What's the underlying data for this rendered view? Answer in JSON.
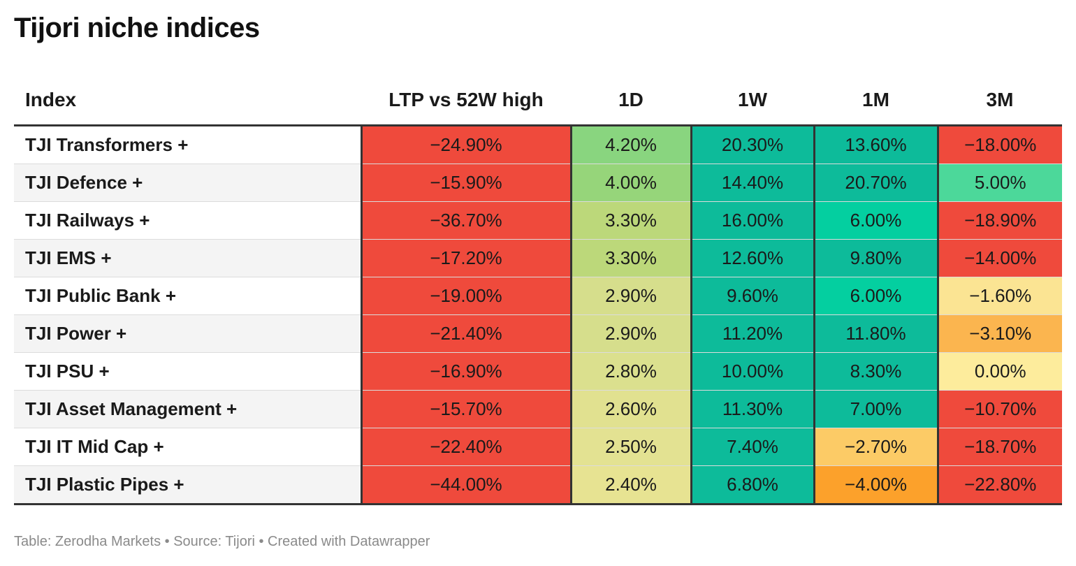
{
  "title": "Tijori niche indices",
  "footer": "Table: Zerodha Markets • Source: Tijori • Created with Datawrapper",
  "chart_data": {
    "type": "table",
    "title": "Tijori niche indices",
    "columns": [
      "Index",
      "LTP vs 52W high",
      "1D",
      "1W",
      "1M",
      "3M"
    ],
    "rows": [
      {
        "name": "TJI Transformers +",
        "values": [
          "−24.90%",
          "4.20%",
          "20.30%",
          "13.60%",
          "−18.00%"
        ],
        "colors": [
          "#ef4a3c",
          "#89d57f",
          "#0dbb9a",
          "#0dbb9a",
          "#ef4a3c"
        ]
      },
      {
        "name": "TJI Defence +",
        "values": [
          "−15.90%",
          "4.00%",
          "14.40%",
          "20.70%",
          "5.00%"
        ],
        "colors": [
          "#ef4a3c",
          "#96d57a",
          "#0dbb9a",
          "#0dbb9a",
          "#4cd89a"
        ]
      },
      {
        "name": "TJI Railways +",
        "values": [
          "−36.70%",
          "3.30%",
          "16.00%",
          "6.00%",
          "−18.90%"
        ],
        "colors": [
          "#ef4a3c",
          "#bcd87a",
          "#0dbb9a",
          "#04cfa0",
          "#ef4a3c"
        ]
      },
      {
        "name": "TJI EMS +",
        "values": [
          "−17.20%",
          "3.30%",
          "12.60%",
          "9.80%",
          "−14.00%"
        ],
        "colors": [
          "#ef4a3c",
          "#bcd87a",
          "#0dbb9a",
          "#0dbb9a",
          "#ef4a3c"
        ]
      },
      {
        "name": "TJI Public Bank +",
        "values": [
          "−19.00%",
          "2.90%",
          "9.60%",
          "6.00%",
          "−1.60%"
        ],
        "colors": [
          "#ef4a3c",
          "#d6de8c",
          "#0dbb9a",
          "#04cfa0",
          "#fbe493"
        ]
      },
      {
        "name": "TJI Power +",
        "values": [
          "−21.40%",
          "2.90%",
          "11.20%",
          "11.80%",
          "−3.10%"
        ],
        "colors": [
          "#ef4a3c",
          "#d6de8c",
          "#0dbb9a",
          "#0dbb9a",
          "#fbb54f"
        ]
      },
      {
        "name": "TJI PSU +",
        "values": [
          "−16.90%",
          "2.80%",
          "10.00%",
          "8.30%",
          "0.00%"
        ],
        "colors": [
          "#ef4a3c",
          "#dbe08e",
          "#0dbb9a",
          "#0dbb9a",
          "#fdec9c"
        ]
      },
      {
        "name": "TJI Asset Management +",
        "values": [
          "−15.70%",
          "2.60%",
          "11.30%",
          "7.00%",
          "−10.70%"
        ],
        "colors": [
          "#ef4a3c",
          "#e1e190",
          "#0dbb9a",
          "#0dbb9a",
          "#ef4a3c"
        ]
      },
      {
        "name": "TJI IT Mid Cap +",
        "values": [
          "−22.40%",
          "2.50%",
          "7.40%",
          "−2.70%",
          "−18.70%"
        ],
        "colors": [
          "#ef4a3c",
          "#e3e292",
          "#0dbb9a",
          "#fccb66",
          "#ef4a3c"
        ]
      },
      {
        "name": "TJI Plastic Pipes +",
        "values": [
          "−44.00%",
          "2.40%",
          "6.80%",
          "−4.00%",
          "−22.80%"
        ],
        "colors": [
          "#ef4a3c",
          "#e7e392",
          "#0dbb9a",
          "#fca12b",
          "#ef4a3c"
        ]
      }
    ]
  }
}
